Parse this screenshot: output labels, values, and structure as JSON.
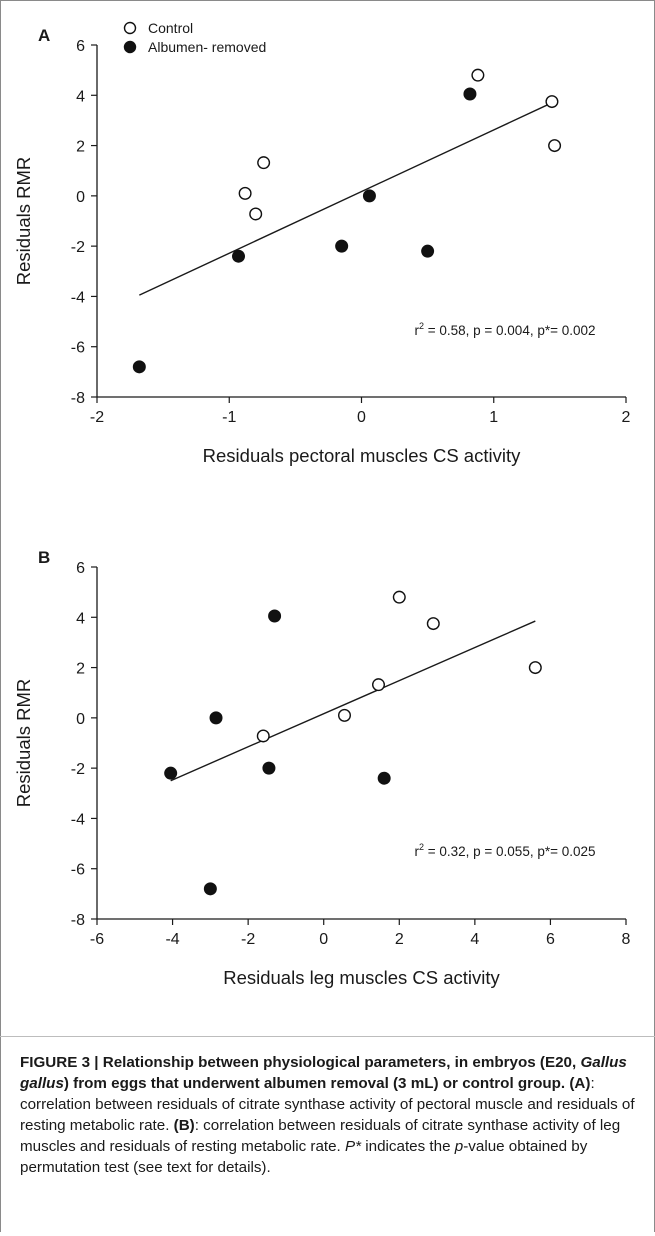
{
  "chart_data": [
    {
      "type": "scatter",
      "panel_label": "A",
      "xlabel": "Residuals pectoral muscles CS activity",
      "ylabel": "Residuals RMR",
      "xlim": [
        -2,
        2
      ],
      "ylim": [
        -8,
        6
      ],
      "xticks": [
        -2,
        -1,
        0,
        1,
        2
      ],
      "yticks": [
        -8,
        -6,
        -4,
        -2,
        0,
        2,
        4,
        6
      ],
      "legend_position": "top-left",
      "grid": false,
      "series": [
        {
          "name": "Control",
          "marker": "open-circle",
          "points": [
            [
              -0.88,
              0.1
            ],
            [
              -0.8,
              -0.72
            ],
            [
              -0.74,
              1.32
            ],
            [
              0.88,
              4.8
            ],
            [
              1.44,
              3.75
            ],
            [
              1.46,
              2.0
            ]
          ]
        },
        {
          "name": "Albumen- removed",
          "marker": "filled-circle",
          "points": [
            [
              -1.68,
              -6.8
            ],
            [
              -0.93,
              -2.4
            ],
            [
              -0.15,
              -2.0
            ],
            [
              0.06,
              0.0
            ],
            [
              0.5,
              -2.2
            ],
            [
              0.82,
              4.05
            ]
          ]
        }
      ],
      "regression_line": [
        [
          -1.68,
          -3.95
        ],
        [
          1.46,
          3.75
        ]
      ],
      "annotation": {
        "r2": "2",
        "r_prefix": "r",
        "text": " = 0.58, p = 0.004, p*= 0.002"
      }
    },
    {
      "type": "scatter",
      "panel_label": "B",
      "xlabel": "Residuals leg muscles CS activity",
      "ylabel": "Residuals RMR",
      "xlim": [
        -6,
        8
      ],
      "ylim": [
        -8,
        6
      ],
      "xticks": [
        -6,
        -4,
        -2,
        0,
        2,
        4,
        6,
        8
      ],
      "yticks": [
        -8,
        -6,
        -4,
        -2,
        0,
        2,
        4,
        6
      ],
      "grid": false,
      "series": [
        {
          "marker": "open-circle",
          "points": [
            [
              -1.6,
              -0.72
            ],
            [
              0.55,
              0.1
            ],
            [
              1.45,
              1.32
            ],
            [
              2.0,
              4.8
            ],
            [
              2.9,
              3.75
            ],
            [
              5.6,
              2.0
            ]
          ]
        },
        {
          "marker": "filled-circle",
          "points": [
            [
              -4.05,
              -2.2
            ],
            [
              -3.0,
              -6.8
            ],
            [
              -2.85,
              0.0
            ],
            [
              -1.45,
              -2.0
            ],
            [
              -1.3,
              4.05
            ],
            [
              1.6,
              -2.4
            ]
          ]
        }
      ],
      "regression_line": [
        [
          -4.05,
          -2.5
        ],
        [
          5.6,
          3.85
        ]
      ],
      "annotation": {
        "r2": "2",
        "r_prefix": "r",
        "text": " = 0.32, p = 0.055, p*= 0.025"
      }
    }
  ],
  "caption": {
    "label": "FIGURE 3 | Relationship between physiological parameters, in embryos (E20, ",
    "species": "Gallus gallus",
    "label_rest": ") from eggs that underwent albumen removal (3 mL) or control group.",
    "ref_a": " (A)",
    "text_a": ": correlation between residuals of citrate synthase activity of pectoral muscle and residuals of resting metabolic rate. ",
    "ref_b": "(B)",
    "text_b": ": correlation between residuals of citrate synthase activity of leg muscles and residuals of resting metabolic rate. ",
    "pstar": "P*",
    "text_c": " indicates the ",
    "pvalue_italic": "p",
    "text_d": "-value obtained by permutation test (see text for details)."
  }
}
